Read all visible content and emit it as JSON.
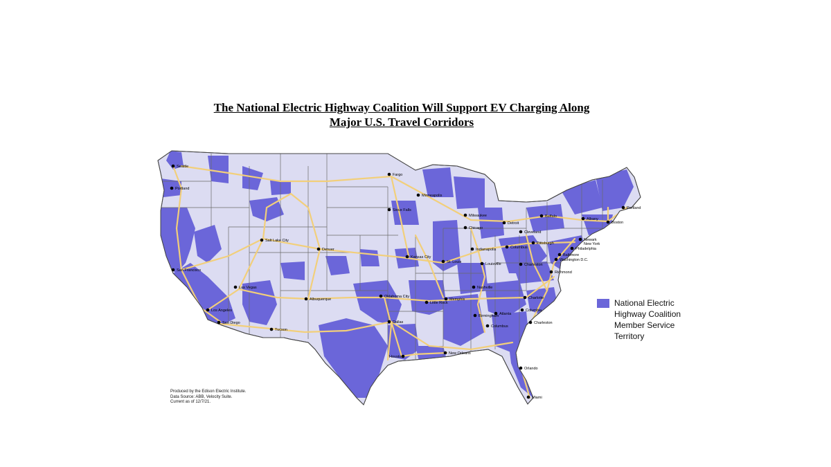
{
  "title": {
    "line1": "The National Electric Highway Coalition Will Support EV Charging Along",
    "line2": "Major U.S. Travel Corridors"
  },
  "legend": {
    "label": "National Electric Highway Coalition Member Service Territory",
    "color": "#6b66d9"
  },
  "colors": {
    "base_land": "#dcdcf2",
    "territory": "#6b66d9",
    "highway": "#f2cf7a",
    "border": "#6a6a6a"
  },
  "credits": {
    "line1": "Produced by the Edison Electric Institute.",
    "line2": "Data Source: ABB, Velocity Suite.",
    "line3": "Current as of 12/7/21."
  },
  "cities": [
    {
      "name": "Seattle"
    },
    {
      "name": "Portland"
    },
    {
      "name": "Fargo"
    },
    {
      "name": "Minneapolis"
    },
    {
      "name": "Sioux Falls"
    },
    {
      "name": "Milwaukee"
    },
    {
      "name": "Chicago"
    },
    {
      "name": "Detroit"
    },
    {
      "name": "Buffalo"
    },
    {
      "name": "Albany"
    },
    {
      "name": "Portland"
    },
    {
      "name": "Boston"
    },
    {
      "name": "Cleveland"
    },
    {
      "name": "Pittsburgh"
    },
    {
      "name": "Newark"
    },
    {
      "name": "New York"
    },
    {
      "name": "Philadelphia"
    },
    {
      "name": "Baltimore"
    },
    {
      "name": "Washington D.C."
    },
    {
      "name": "Salt Lake City"
    },
    {
      "name": "Denver"
    },
    {
      "name": "Kansas City"
    },
    {
      "name": "St. Louis"
    },
    {
      "name": "Indianapolis"
    },
    {
      "name": "Columbus"
    },
    {
      "name": "Louisville"
    },
    {
      "name": "Charleston"
    },
    {
      "name": "Richmond"
    },
    {
      "name": "San Francisco"
    },
    {
      "name": "Las Vegas"
    },
    {
      "name": "Los Angeles"
    },
    {
      "name": "San Diego"
    },
    {
      "name": "Tucson"
    },
    {
      "name": "Albuquerque"
    },
    {
      "name": "Oklahoma City"
    },
    {
      "name": "Little Rock"
    },
    {
      "name": "Memphis"
    },
    {
      "name": "Nashville"
    },
    {
      "name": "Charlotte"
    },
    {
      "name": "Columbia"
    },
    {
      "name": "Atlanta"
    },
    {
      "name": "Birmingham"
    },
    {
      "name": "Columbus"
    },
    {
      "name": "Charleston"
    },
    {
      "name": "Dallas"
    },
    {
      "name": "Houston"
    },
    {
      "name": "New Orleans"
    },
    {
      "name": "Orlando"
    },
    {
      "name": "Miami"
    }
  ]
}
